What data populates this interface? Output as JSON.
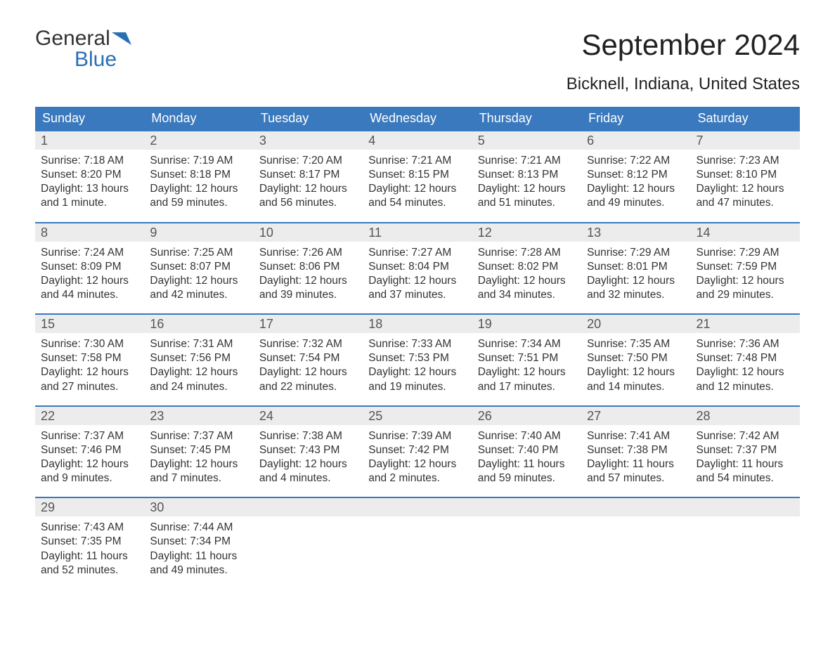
{
  "brand": {
    "part1": "General",
    "part2": "Blue",
    "logo_color": "#2a6fb5"
  },
  "title": "September 2024",
  "subtitle": "Bicknell, Indiana, United States",
  "colors": {
    "header_bg": "#3a79bd",
    "header_text": "#ffffff",
    "daynum_bg": "#ececec",
    "daynum_text": "#555555",
    "body_text": "#333333",
    "week_border": "#3a79bd",
    "page_bg": "#ffffff"
  },
  "typography": {
    "title_fontsize": 42,
    "subtitle_fontsize": 24,
    "header_fontsize": 18,
    "daynum_fontsize": 18,
    "body_fontsize": 15.5,
    "font_family": "Arial, Helvetica, sans-serif"
  },
  "labels": {
    "sunrise": "Sunrise:",
    "sunset": "Sunset:",
    "daylight": "Daylight:"
  },
  "day_headers": [
    "Sunday",
    "Monday",
    "Tuesday",
    "Wednesday",
    "Thursday",
    "Friday",
    "Saturday"
  ],
  "weeks": [
    [
      {
        "n": "1",
        "sunrise": "7:18 AM",
        "sunset": "8:20 PM",
        "daylight1": "13 hours",
        "daylight2": "and 1 minute."
      },
      {
        "n": "2",
        "sunrise": "7:19 AM",
        "sunset": "8:18 PM",
        "daylight1": "12 hours",
        "daylight2": "and 59 minutes."
      },
      {
        "n": "3",
        "sunrise": "7:20 AM",
        "sunset": "8:17 PM",
        "daylight1": "12 hours",
        "daylight2": "and 56 minutes."
      },
      {
        "n": "4",
        "sunrise": "7:21 AM",
        "sunset": "8:15 PM",
        "daylight1": "12 hours",
        "daylight2": "and 54 minutes."
      },
      {
        "n": "5",
        "sunrise": "7:21 AM",
        "sunset": "8:13 PM",
        "daylight1": "12 hours",
        "daylight2": "and 51 minutes."
      },
      {
        "n": "6",
        "sunrise": "7:22 AM",
        "sunset": "8:12 PM",
        "daylight1": "12 hours",
        "daylight2": "and 49 minutes."
      },
      {
        "n": "7",
        "sunrise": "7:23 AM",
        "sunset": "8:10 PM",
        "daylight1": "12 hours",
        "daylight2": "and 47 minutes."
      }
    ],
    [
      {
        "n": "8",
        "sunrise": "7:24 AM",
        "sunset": "8:09 PM",
        "daylight1": "12 hours",
        "daylight2": "and 44 minutes."
      },
      {
        "n": "9",
        "sunrise": "7:25 AM",
        "sunset": "8:07 PM",
        "daylight1": "12 hours",
        "daylight2": "and 42 minutes."
      },
      {
        "n": "10",
        "sunrise": "7:26 AM",
        "sunset": "8:06 PM",
        "daylight1": "12 hours",
        "daylight2": "and 39 minutes."
      },
      {
        "n": "11",
        "sunrise": "7:27 AM",
        "sunset": "8:04 PM",
        "daylight1": "12 hours",
        "daylight2": "and 37 minutes."
      },
      {
        "n": "12",
        "sunrise": "7:28 AM",
        "sunset": "8:02 PM",
        "daylight1": "12 hours",
        "daylight2": "and 34 minutes."
      },
      {
        "n": "13",
        "sunrise": "7:29 AM",
        "sunset": "8:01 PM",
        "daylight1": "12 hours",
        "daylight2": "and 32 minutes."
      },
      {
        "n": "14",
        "sunrise": "7:29 AM",
        "sunset": "7:59 PM",
        "daylight1": "12 hours",
        "daylight2": "and 29 minutes."
      }
    ],
    [
      {
        "n": "15",
        "sunrise": "7:30 AM",
        "sunset": "7:58 PM",
        "daylight1": "12 hours",
        "daylight2": "and 27 minutes."
      },
      {
        "n": "16",
        "sunrise": "7:31 AM",
        "sunset": "7:56 PM",
        "daylight1": "12 hours",
        "daylight2": "and 24 minutes."
      },
      {
        "n": "17",
        "sunrise": "7:32 AM",
        "sunset": "7:54 PM",
        "daylight1": "12 hours",
        "daylight2": "and 22 minutes."
      },
      {
        "n": "18",
        "sunrise": "7:33 AM",
        "sunset": "7:53 PM",
        "daylight1": "12 hours",
        "daylight2": "and 19 minutes."
      },
      {
        "n": "19",
        "sunrise": "7:34 AM",
        "sunset": "7:51 PM",
        "daylight1": "12 hours",
        "daylight2": "and 17 minutes."
      },
      {
        "n": "20",
        "sunrise": "7:35 AM",
        "sunset": "7:50 PM",
        "daylight1": "12 hours",
        "daylight2": "and 14 minutes."
      },
      {
        "n": "21",
        "sunrise": "7:36 AM",
        "sunset": "7:48 PM",
        "daylight1": "12 hours",
        "daylight2": "and 12 minutes."
      }
    ],
    [
      {
        "n": "22",
        "sunrise": "7:37 AM",
        "sunset": "7:46 PM",
        "daylight1": "12 hours",
        "daylight2": "and 9 minutes."
      },
      {
        "n": "23",
        "sunrise": "7:37 AM",
        "sunset": "7:45 PM",
        "daylight1": "12 hours",
        "daylight2": "and 7 minutes."
      },
      {
        "n": "24",
        "sunrise": "7:38 AM",
        "sunset": "7:43 PM",
        "daylight1": "12 hours",
        "daylight2": "and 4 minutes."
      },
      {
        "n": "25",
        "sunrise": "7:39 AM",
        "sunset": "7:42 PM",
        "daylight1": "12 hours",
        "daylight2": "and 2 minutes."
      },
      {
        "n": "26",
        "sunrise": "7:40 AM",
        "sunset": "7:40 PM",
        "daylight1": "11 hours",
        "daylight2": "and 59 minutes."
      },
      {
        "n": "27",
        "sunrise": "7:41 AM",
        "sunset": "7:38 PM",
        "daylight1": "11 hours",
        "daylight2": "and 57 minutes."
      },
      {
        "n": "28",
        "sunrise": "7:42 AM",
        "sunset": "7:37 PM",
        "daylight1": "11 hours",
        "daylight2": "and 54 minutes."
      }
    ],
    [
      {
        "n": "29",
        "sunrise": "7:43 AM",
        "sunset": "7:35 PM",
        "daylight1": "11 hours",
        "daylight2": "and 52 minutes."
      },
      {
        "n": "30",
        "sunrise": "7:44 AM",
        "sunset": "7:34 PM",
        "daylight1": "11 hours",
        "daylight2": "and 49 minutes."
      },
      {
        "empty": true
      },
      {
        "empty": true
      },
      {
        "empty": true
      },
      {
        "empty": true
      },
      {
        "empty": true
      }
    ]
  ]
}
